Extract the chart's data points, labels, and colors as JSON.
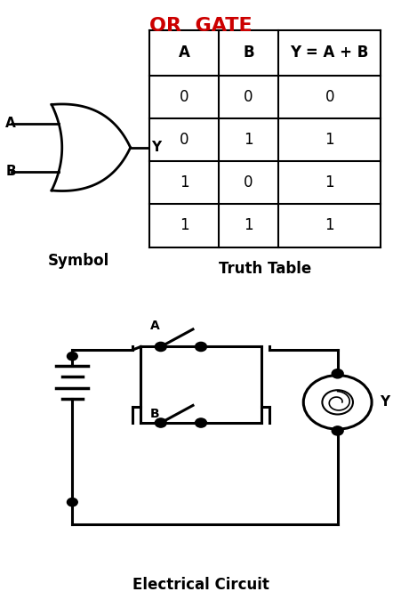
{
  "title": "OR  GATE",
  "title_color": "#cc0000",
  "title_fontsize": 16,
  "table_headers": [
    "A",
    "B",
    "Y = A + B"
  ],
  "table_data": [
    [
      "0",
      "0",
      "0"
    ],
    [
      "0",
      "1",
      "1"
    ],
    [
      "1",
      "0",
      "1"
    ],
    [
      "1",
      "1",
      "1"
    ]
  ],
  "truth_table_label": "Truth Table",
  "symbol_label": "Symbol",
  "electrical_label": "Electrical Circuit",
  "bg_color": "#ffffff",
  "line_color": "#000000",
  "label_A": "A",
  "label_B": "B",
  "label_Y": "Y",
  "figsize": [
    4.52,
    6.92
  ],
  "dpi": 100
}
